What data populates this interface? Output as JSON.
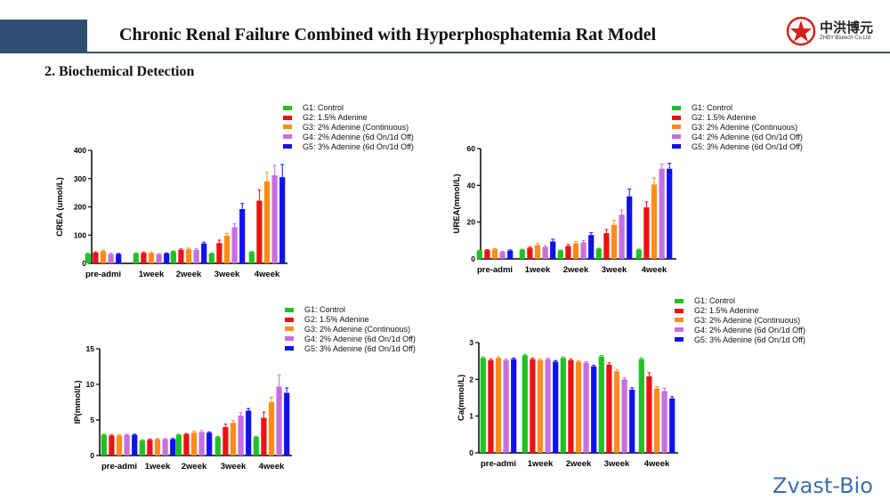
{
  "header": {
    "title": "Chronic Renal Failure Combined with Hyperphosphatemia Rat Model",
    "section": "2. Biochemical Detection",
    "logo_cn": "中洪博元",
    "logo_en": "ZHBY Biotech Co.Ltd"
  },
  "watermark": "Zvast-Bio",
  "colors": {
    "banner": "#2e4f73",
    "G1": "#22c022",
    "G2": "#ee1111",
    "G3": "#ff8c1a",
    "G4": "#c86ee0",
    "G5": "#1111ee"
  },
  "legend": [
    {
      "key": "G1",
      "label": "G1: Control"
    },
    {
      "key": "G2",
      "label": "G2: 1.5% Adenine"
    },
    {
      "key": "G3",
      "label": "G3: 2%  Adenine (Continuous)"
    },
    {
      "key": "G4",
      "label": "G4: 2% Adenine (6d On/1d Off)"
    },
    {
      "key": "G5",
      "label": "G5: 3% Adenine (6d On/1d Off)"
    }
  ],
  "chart_data": [
    {
      "type": "bar",
      "ylabel": "CREA (umol/L)",
      "ylim": [
        0,
        400
      ],
      "yticks": [
        0,
        100,
        200,
        300,
        400
      ],
      "categories": [
        "pre-admi",
        "1week",
        "2week",
        "3week",
        "4week"
      ],
      "series": [
        {
          "name": "G1: Control",
          "values": [
            34,
            35,
            42,
            35,
            40
          ],
          "err": [
            2,
            2,
            2,
            2,
            2
          ]
        },
        {
          "name": "G2: 1.5% Adenine",
          "values": [
            38,
            37,
            48,
            72,
            222
          ],
          "err": [
            3,
            3,
            3,
            10,
            38
          ]
        },
        {
          "name": "G3: 2%  Adenine (Continuous)",
          "values": [
            43,
            36,
            50,
            98,
            290
          ],
          "err": [
            3,
            3,
            4,
            8,
            32
          ]
        },
        {
          "name": "G4: 2% Adenine (6d On/1d Off)",
          "values": [
            33,
            32,
            48,
            128,
            312
          ],
          "err": [
            3,
            2,
            4,
            12,
            35
          ]
        },
        {
          "name": "G5: 3% Adenine (6d On/1d Off)",
          "values": [
            33,
            35,
            70,
            192,
            305
          ],
          "err": [
            2,
            2,
            5,
            20,
            45
          ]
        }
      ]
    },
    {
      "type": "bar",
      "ylabel": "UREA(mmol/L)",
      "ylim": [
        0,
        60
      ],
      "yticks": [
        0,
        20,
        40,
        60
      ],
      "categories": [
        "pre-admi",
        "1week",
        "2week",
        "3week",
        "4week"
      ],
      "series": [
        {
          "name": "G1: Control",
          "values": [
            4.5,
            5.0,
            4.5,
            5.5,
            5.0
          ],
          "err": [
            0.3,
            0.3,
            0.3,
            0.3,
            0.3
          ]
        },
        {
          "name": "G2: 1.5% Adenine",
          "values": [
            4.8,
            6.0,
            7.0,
            14.0,
            28.0
          ],
          "err": [
            0.3,
            0.5,
            0.8,
            2.0,
            3.0
          ]
        },
        {
          "name": "G3: 2%  Adenine (Continuous)",
          "values": [
            5.2,
            7.5,
            8.5,
            18.5,
            40.5
          ],
          "err": [
            0.4,
            0.8,
            1.0,
            2.5,
            3.5
          ]
        },
        {
          "name": "G4: 2% Adenine (6d On/1d Off)",
          "values": [
            3.8,
            6.5,
            9.0,
            24.0,
            49.0
          ],
          "err": [
            0.3,
            0.8,
            1.0,
            2.5,
            2.5
          ]
        },
        {
          "name": "G5: 3% Adenine (6d On/1d Off)",
          "values": [
            4.5,
            9.5,
            13.0,
            34.0,
            49.0
          ],
          "err": [
            0.4,
            1.2,
            1.2,
            4.0,
            3.0
          ]
        }
      ]
    },
    {
      "type": "bar",
      "ylabel": "IP(mmol/L)",
      "ylim": [
        0,
        15
      ],
      "yticks": [
        0,
        5,
        10,
        15
      ],
      "categories": [
        "pre-admi",
        "1week",
        "2week",
        "3week",
        "4week"
      ],
      "series": [
        {
          "name": "G1: Control",
          "values": [
            2.9,
            2.1,
            2.9,
            2.6,
            2.6
          ],
          "err": [
            0.1,
            0.1,
            0.1,
            0.1,
            0.1
          ]
        },
        {
          "name": "G2: 1.5% Adenine",
          "values": [
            2.8,
            2.2,
            3.0,
            4.0,
            5.3
          ],
          "err": [
            0.1,
            0.1,
            0.1,
            0.4,
            0.8
          ]
        },
        {
          "name": "G3: 2%  Adenine (Continuous)",
          "values": [
            2.8,
            2.3,
            3.2,
            4.6,
            7.5
          ],
          "err": [
            0.1,
            0.1,
            0.2,
            0.3,
            0.7
          ]
        },
        {
          "name": "G4: 2% Adenine (6d On/1d Off)",
          "values": [
            2.9,
            2.3,
            3.3,
            5.6,
            9.7
          ],
          "err": [
            0.1,
            0.1,
            0.2,
            0.4,
            1.6
          ]
        },
        {
          "name": "G5: 3% Adenine (6d On/1d Off)",
          "values": [
            2.9,
            2.3,
            3.2,
            6.3,
            8.8
          ],
          "err": [
            0.1,
            0.1,
            0.1,
            0.3,
            0.7
          ]
        }
      ]
    },
    {
      "type": "bar",
      "ylabel": "Ca(mmol/L)",
      "ylim": [
        0,
        3
      ],
      "yticks": [
        0,
        1,
        2,
        3
      ],
      "categories": [
        "pre-admi",
        "1week",
        "2week",
        "3week",
        "4week"
      ],
      "series": [
        {
          "name": "G1: Control",
          "values": [
            2.58,
            2.65,
            2.58,
            2.62,
            2.55
          ],
          "err": [
            0.03,
            0.03,
            0.03,
            0.03,
            0.03
          ]
        },
        {
          "name": "G2: 1.5% Adenine",
          "values": [
            2.52,
            2.55,
            2.52,
            2.4,
            2.08
          ],
          "err": [
            0.03,
            0.03,
            0.03,
            0.05,
            0.1
          ]
        },
        {
          "name": "G3: 2%  Adenine (Continuous)",
          "values": [
            2.58,
            2.52,
            2.48,
            2.22,
            1.75
          ],
          "err": [
            0.03,
            0.03,
            0.03,
            0.05,
            0.05
          ]
        },
        {
          "name": "G4: 2% Adenine (6d On/1d Off)",
          "values": [
            2.52,
            2.55,
            2.45,
            2.0,
            1.68
          ],
          "err": [
            0.03,
            0.03,
            0.03,
            0.05,
            0.08
          ]
        },
        {
          "name": "G5: 3% Adenine (6d On/1d Off)",
          "values": [
            2.55,
            2.48,
            2.35,
            1.72,
            1.48
          ],
          "err": [
            0.03,
            0.03,
            0.03,
            0.05,
            0.05
          ]
        }
      ]
    }
  ]
}
